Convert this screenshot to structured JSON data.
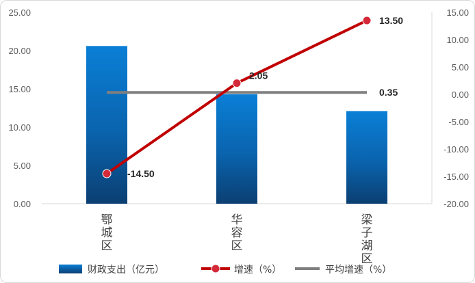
{
  "chart_data": {
    "type": "bar",
    "categories": [
      "鄂城区",
      "华容区",
      "梁子湖区"
    ],
    "series": [
      {
        "name": "财政支出（亿元）",
        "type": "bar",
        "axis": "left",
        "values": [
          20.6,
          14.3,
          12.1
        ],
        "color": "#0070c0"
      },
      {
        "name": "增速（%）",
        "type": "line",
        "axis": "right",
        "values": [
          -14.5,
          2.05,
          13.5
        ],
        "labels": [
          "-14.50",
          "2.05",
          "13.50"
        ],
        "color": "#c00000"
      },
      {
        "name": "平均增速（%）",
        "type": "line",
        "axis": "right",
        "values": [
          0.35,
          0.35,
          0.35
        ],
        "labels": [
          "0.35"
        ],
        "color": "#7f7f7f"
      }
    ],
    "y_left": {
      "ylim": [
        0,
        25
      ],
      "ticks": [
        "0.00",
        "5.00",
        "10.00",
        "15.00",
        "20.00",
        "25.00"
      ]
    },
    "y_right": {
      "ylim": [
        -20,
        15
      ],
      "ticks": [
        "-20.00",
        "-15.00",
        "-10.00",
        "-5.00",
        "0.00",
        "5.00",
        "10.00",
        "15.00"
      ]
    },
    "legend_position": "bottom",
    "grid": false
  }
}
